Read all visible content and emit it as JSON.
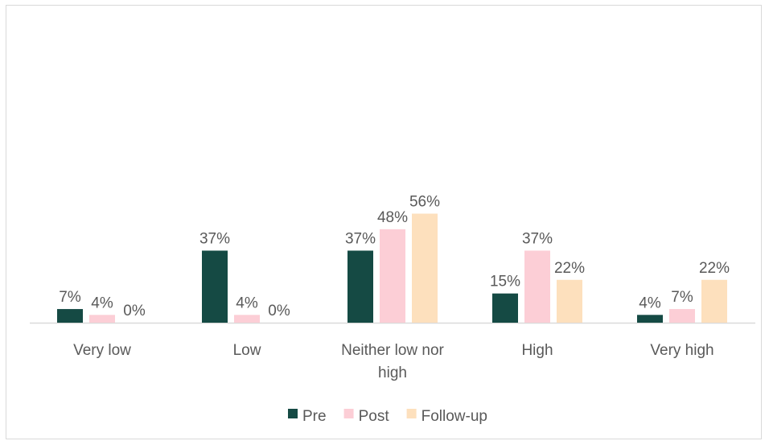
{
  "chart_data": {
    "type": "bar",
    "categories": [
      [
        "Very low"
      ],
      [
        "Low"
      ],
      [
        "Neither low nor",
        "high"
      ],
      [
        "High"
      ],
      [
        "Very high"
      ]
    ],
    "series": [
      {
        "name": "Pre",
        "color": "#154a44",
        "values": [
          7,
          37,
          37,
          15,
          4
        ],
        "labels": [
          "7%",
          "37%",
          "37%",
          "15%",
          "4%"
        ]
      },
      {
        "name": "Post",
        "color": "#fcced6",
        "values": [
          4,
          4,
          48,
          37,
          7
        ],
        "labels": [
          "4%",
          "4%",
          "48%",
          "37%",
          "7%"
        ]
      },
      {
        "name": "Follow-up",
        "color": "#fde0bd",
        "values": [
          0,
          0,
          56,
          22,
          22
        ],
        "labels": [
          "0%",
          "0%",
          "56%",
          "22%",
          "22%"
        ]
      }
    ],
    "ylim": [
      0,
      100
    ],
    "grid": false,
    "legend_position": "bottom"
  }
}
